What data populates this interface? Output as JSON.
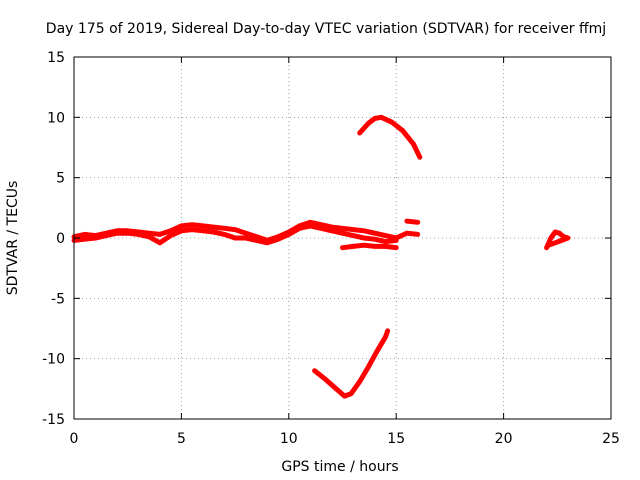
{
  "chart_data": {
    "type": "line",
    "title": "Day 175 of 2019, Sidereal Day-to-day VTEC variation (SDTVAR) for receiver ffmj",
    "xlabel": "GPS time / hours",
    "ylabel": "SDTVAR / TECUs",
    "xlim": [
      0,
      25
    ],
    "ylim": [
      -15,
      15
    ],
    "xticks": [
      0,
      5,
      10,
      15,
      20,
      25
    ],
    "yticks": [
      -15,
      -10,
      -5,
      0,
      5,
      10,
      15
    ],
    "x_tick_labels": [
      "0",
      "5",
      "10",
      "15",
      "20",
      "25"
    ],
    "y_tick_labels": [
      "-15",
      "-10",
      "-5",
      "0",
      "5",
      "10",
      "15"
    ],
    "grid": true,
    "color": "#ff0000",
    "series": [
      {
        "points": [
          [
            0.0,
            0.1
          ],
          [
            0.5,
            0.3
          ],
          [
            1.0,
            0.2
          ],
          [
            1.5,
            0.4
          ],
          [
            2.0,
            0.6
          ],
          [
            2.5,
            0.6
          ],
          [
            3.0,
            0.5
          ],
          [
            3.5,
            0.4
          ],
          [
            4.0,
            0.3
          ],
          [
            4.5,
            0.6
          ],
          [
            5.0,
            1.0
          ],
          [
            5.5,
            1.1
          ],
          [
            6.0,
            1.0
          ],
          [
            6.5,
            0.9
          ],
          [
            7.0,
            0.8
          ],
          [
            7.5,
            0.7
          ],
          [
            8.0,
            0.4
          ],
          [
            8.5,
            0.1
          ],
          [
            9.0,
            -0.2
          ],
          [
            9.5,
            0.1
          ],
          [
            10.0,
            0.5
          ],
          [
            10.5,
            1.0
          ],
          [
            11.0,
            1.3
          ],
          [
            11.5,
            1.1
          ],
          [
            12.0,
            0.9
          ],
          [
            12.5,
            0.8
          ],
          [
            13.0,
            0.7
          ],
          [
            13.5,
            0.6
          ],
          [
            14.0,
            0.4
          ],
          [
            14.5,
            0.2
          ],
          [
            15.0,
            0.0
          ],
          [
            15.5,
            0.4
          ],
          [
            16.0,
            0.3
          ]
        ]
      },
      {
        "points": [
          [
            0.0,
            -0.2
          ],
          [
            0.5,
            -0.1
          ],
          [
            1.0,
            0.0
          ],
          [
            1.5,
            0.2
          ],
          [
            2.0,
            0.4
          ],
          [
            2.5,
            0.4
          ],
          [
            3.0,
            0.3
          ],
          [
            3.5,
            0.1
          ],
          [
            4.0,
            -0.4
          ],
          [
            4.5,
            0.2
          ],
          [
            5.0,
            0.6
          ],
          [
            5.5,
            0.7
          ],
          [
            6.0,
            0.6
          ],
          [
            6.5,
            0.5
          ],
          [
            7.0,
            0.3
          ],
          [
            7.5,
            0.0
          ],
          [
            8.0,
            0.0
          ],
          [
            8.5,
            -0.2
          ],
          [
            9.0,
            -0.4
          ],
          [
            9.5,
            -0.1
          ],
          [
            10.0,
            0.3
          ],
          [
            10.5,
            0.8
          ],
          [
            11.0,
            1.0
          ],
          [
            11.5,
            0.8
          ],
          [
            12.0,
            0.6
          ],
          [
            12.5,
            0.4
          ],
          [
            13.0,
            0.2
          ],
          [
            13.5,
            0.0
          ],
          [
            14.0,
            -0.1
          ],
          [
            14.5,
            -0.3
          ],
          [
            15.0,
            -0.2
          ]
        ]
      },
      {
        "points": [
          [
            12.5,
            -0.8
          ],
          [
            13.0,
            -0.7
          ],
          [
            13.5,
            -0.6
          ],
          [
            14.0,
            -0.7
          ],
          [
            14.5,
            -0.7
          ],
          [
            15.0,
            -0.8
          ]
        ]
      },
      {
        "points": [
          [
            15.5,
            1.4
          ],
          [
            16.0,
            1.3
          ]
        ]
      },
      {
        "points": [
          [
            13.3,
            8.7
          ],
          [
            13.7,
            9.5
          ],
          [
            14.0,
            9.9
          ],
          [
            14.3,
            10.0
          ],
          [
            14.8,
            9.6
          ],
          [
            15.3,
            8.9
          ],
          [
            15.8,
            7.8
          ],
          [
            16.1,
            6.7
          ]
        ]
      },
      {
        "points": [
          [
            11.2,
            -11.0
          ],
          [
            11.7,
            -11.7
          ],
          [
            12.2,
            -12.5
          ],
          [
            12.6,
            -13.1
          ],
          [
            12.9,
            -12.9
          ],
          [
            13.3,
            -11.9
          ],
          [
            13.7,
            -10.7
          ],
          [
            14.1,
            -9.4
          ],
          [
            14.5,
            -8.2
          ],
          [
            14.6,
            -7.7
          ]
        ]
      },
      {
        "points": [
          [
            22.0,
            -0.8
          ],
          [
            22.2,
            0.0
          ],
          [
            22.4,
            0.5
          ],
          [
            22.6,
            0.4
          ],
          [
            22.8,
            0.1
          ],
          [
            23.0,
            0.0
          ],
          [
            22.7,
            -0.2
          ],
          [
            22.4,
            -0.4
          ],
          [
            22.1,
            -0.6
          ]
        ]
      }
    ]
  }
}
